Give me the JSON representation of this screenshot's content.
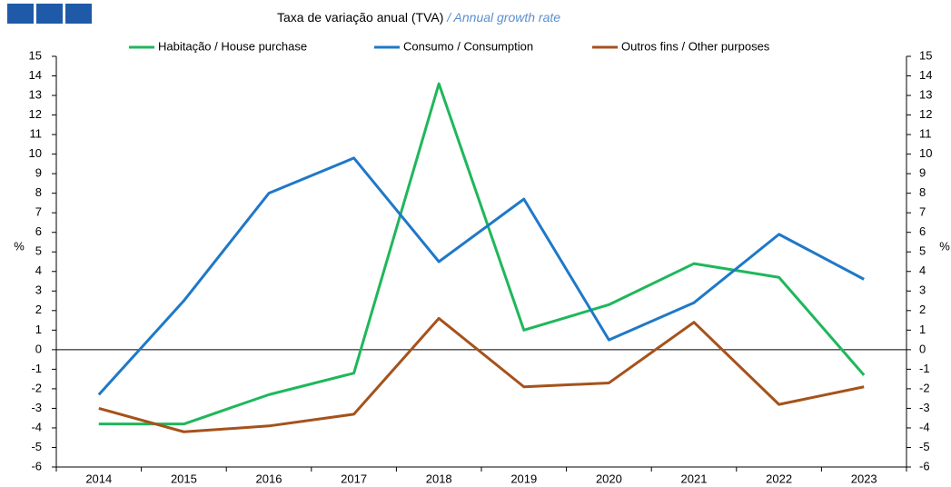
{
  "chart_data": {
    "type": "line",
    "subtitle": "Taxa de variação anual (TVA)",
    "subtitle_en": "/ Annual growth rate",
    "ylabel": "%",
    "y2label": "%",
    "categories": [
      "2014",
      "2015",
      "2016",
      "2017",
      "2018",
      "2019",
      "2020",
      "2021",
      "2022",
      "2023"
    ],
    "series": [
      {
        "name": "Habitação / House purchase",
        "color": "#1fb75b",
        "values": [
          -3.8,
          -3.8,
          -2.3,
          -1.2,
          13.6,
          1.0,
          2.3,
          4.4,
          3.7,
          -1.3
        ]
      },
      {
        "name": "Consumo / Consumption",
        "color": "#1f78c8",
        "values": [
          -2.3,
          2.5,
          8.0,
          9.8,
          4.5,
          7.7,
          0.5,
          2.4,
          5.9,
          3.6
        ]
      },
      {
        "name": "Outros fins / Other purposes",
        "color": "#a5521b",
        "values": [
          -3.0,
          -4.2,
          -3.9,
          -3.3,
          1.6,
          -1.9,
          -1.7,
          1.4,
          -2.8,
          -1.9
        ]
      }
    ],
    "ylim": [
      -6,
      15
    ],
    "yticks": [
      -6,
      -5,
      -4,
      -3,
      -2,
      -1,
      0,
      1,
      2,
      3,
      4,
      5,
      6,
      7,
      8,
      9,
      10,
      11,
      12,
      13,
      14,
      15
    ],
    "y2lim": [
      -6,
      15
    ],
    "y2ticks": [
      -6,
      -5,
      -4,
      -3,
      -2,
      -1,
      0,
      1,
      2,
      3,
      4,
      5,
      6,
      7,
      8,
      9,
      10,
      11,
      12,
      13,
      14,
      15
    ],
    "legend": "top"
  }
}
